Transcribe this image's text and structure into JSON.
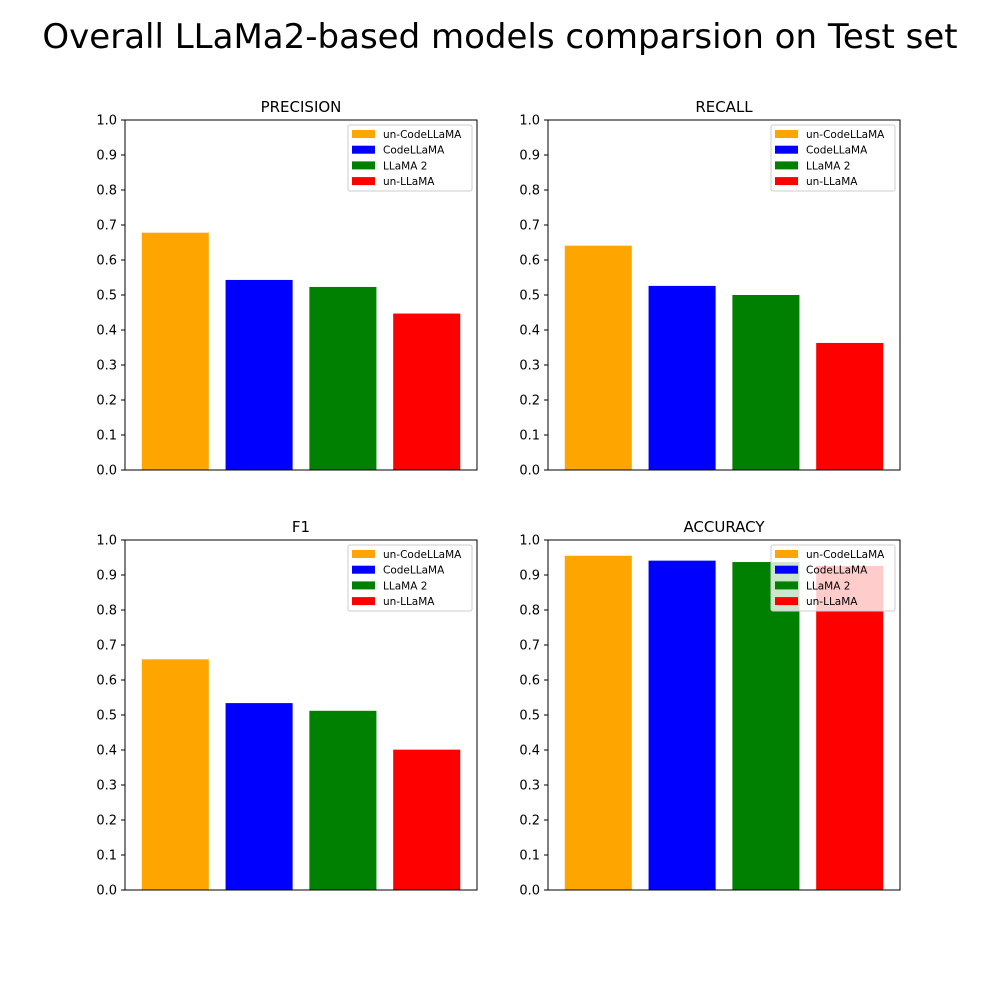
{
  "figure": {
    "title": "Overall LLaMa2-based models comparsion on Test set"
  },
  "chart_data": [
    {
      "type": "bar",
      "title": "PRECISION",
      "categories": [
        "un-CodeLLaMA",
        "CodeLLaMA",
        "LLaMA 2",
        "un-LLaMA"
      ],
      "values": [
        0.678,
        0.543,
        0.523,
        0.447
      ],
      "colors": [
        "#ffa500",
        "#0000ff",
        "#008000",
        "#ff0000"
      ],
      "ylim": [
        0.0,
        1.0
      ],
      "yticks": [
        "0.0",
        "0.1",
        "0.2",
        "0.3",
        "0.4",
        "0.5",
        "0.6",
        "0.7",
        "0.8",
        "0.9",
        "1.0"
      ],
      "legend": [
        "un-CodeLLaMA",
        "CodeLLaMA",
        "LLaMA 2",
        "un-LLaMA"
      ],
      "legend_position": "top-right",
      "grid": false
    },
    {
      "type": "bar",
      "title": "RECALL",
      "categories": [
        "un-CodeLLaMA",
        "CodeLLaMA",
        "LLaMA 2",
        "un-LLaMA"
      ],
      "values": [
        0.641,
        0.526,
        0.5,
        0.363
      ],
      "colors": [
        "#ffa500",
        "#0000ff",
        "#008000",
        "#ff0000"
      ],
      "ylim": [
        0.0,
        1.0
      ],
      "yticks": [
        "0.0",
        "0.1",
        "0.2",
        "0.3",
        "0.4",
        "0.5",
        "0.6",
        "0.7",
        "0.8",
        "0.9",
        "1.0"
      ],
      "legend": [
        "un-CodeLLaMA",
        "CodeLLaMA",
        "LLaMA 2",
        "un-LLaMA"
      ],
      "legend_position": "top-right",
      "grid": false
    },
    {
      "type": "bar",
      "title": "F1",
      "categories": [
        "un-CodeLLaMA",
        "CodeLLaMA",
        "LLaMA 2",
        "un-LLaMA"
      ],
      "values": [
        0.659,
        0.534,
        0.512,
        0.401
      ],
      "colors": [
        "#ffa500",
        "#0000ff",
        "#008000",
        "#ff0000"
      ],
      "ylim": [
        0.0,
        1.0
      ],
      "yticks": [
        "0.0",
        "0.1",
        "0.2",
        "0.3",
        "0.4",
        "0.5",
        "0.6",
        "0.7",
        "0.8",
        "0.9",
        "1.0"
      ],
      "legend": [
        "un-CodeLLaMA",
        "CodeLLaMA",
        "LLaMA 2",
        "un-LLaMA"
      ],
      "legend_position": "top-right",
      "grid": false
    },
    {
      "type": "bar",
      "title": "ACCURACY",
      "categories": [
        "un-CodeLLaMA",
        "CodeLLaMA",
        "LLaMA 2",
        "un-LLaMA"
      ],
      "values": [
        0.955,
        0.941,
        0.937,
        0.926
      ],
      "colors": [
        "#ffa500",
        "#0000ff",
        "#008000",
        "#ff0000"
      ],
      "ylim": [
        0.0,
        1.0
      ],
      "yticks": [
        "0.0",
        "0.1",
        "0.2",
        "0.3",
        "0.4",
        "0.5",
        "0.6",
        "0.7",
        "0.8",
        "0.9",
        "1.0"
      ],
      "legend": [
        "un-CodeLLaMA",
        "CodeLLaMA",
        "LLaMA 2",
        "un-LLaMA"
      ],
      "legend_position": "top-right",
      "grid": false
    }
  ]
}
